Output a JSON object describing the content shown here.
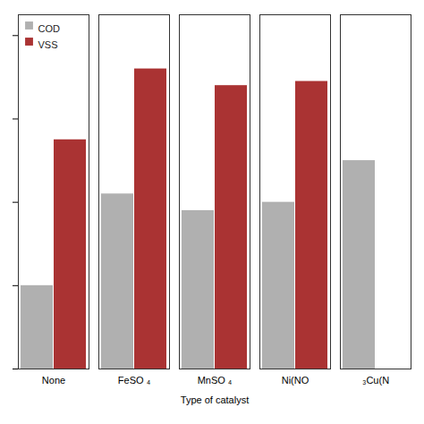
{
  "chart_data": {
    "type": "bar",
    "xlabel": "Type of catalyst",
    "categories": [
      "None",
      "FeSO ₄",
      "MnSO ₄",
      "Ni(NO",
      "₃Cu(N"
    ],
    "series": [
      {
        "name": "COD",
        "color": "#b0b0b0",
        "values": [
          20,
          42,
          38,
          40,
          50
        ]
      },
      {
        "name": "VSS",
        "color": "#aa3333",
        "values": [
          55,
          72,
          68,
          69,
          0
        ]
      }
    ],
    "ylim": [
      0,
      85
    ],
    "yticks": [
      0,
      20,
      40,
      60,
      80
    ],
    "tick_labels": "x",
    "legend": "upper left"
  }
}
